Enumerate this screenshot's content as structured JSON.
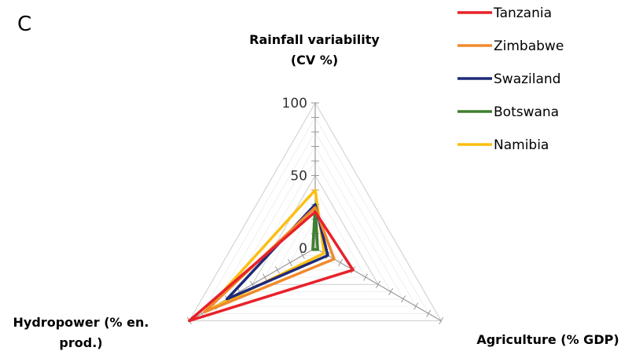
{
  "panel_label": "C",
  "chart_data": {
    "type": "radar",
    "axes": [
      {
        "label_lines": [
          "Rainfall variability",
          "(CV %)"
        ]
      },
      {
        "label_lines": [
          "Agriculture (% GDP)"
        ]
      },
      {
        "label_lines": [
          "Hydropower (% en.",
          "prod.)"
        ]
      }
    ],
    "rlim": [
      0,
      100
    ],
    "tick_labels": [
      "0",
      "50",
      "100"
    ],
    "tick_values": [
      0,
      50,
      100
    ],
    "grid": true,
    "legend_position": "top-right",
    "series": [
      {
        "name": "Tanzania",
        "color": "#e8212a",
        "values": [
          25,
          30,
          100
        ]
      },
      {
        "name": "Zimbabwe",
        "color": "#f08a2c",
        "values": [
          28,
          15,
          88
        ]
      },
      {
        "name": "Swaziland",
        "color": "#1e2a78",
        "values": [
          30,
          10,
          70
        ]
      },
      {
        "name": "Botswana",
        "color": "#3f7f2f",
        "values": [
          29,
          2,
          2
        ]
      },
      {
        "name": "Namibia",
        "color": "#fbbf10",
        "values": [
          40,
          7,
          88
        ]
      }
    ]
  }
}
